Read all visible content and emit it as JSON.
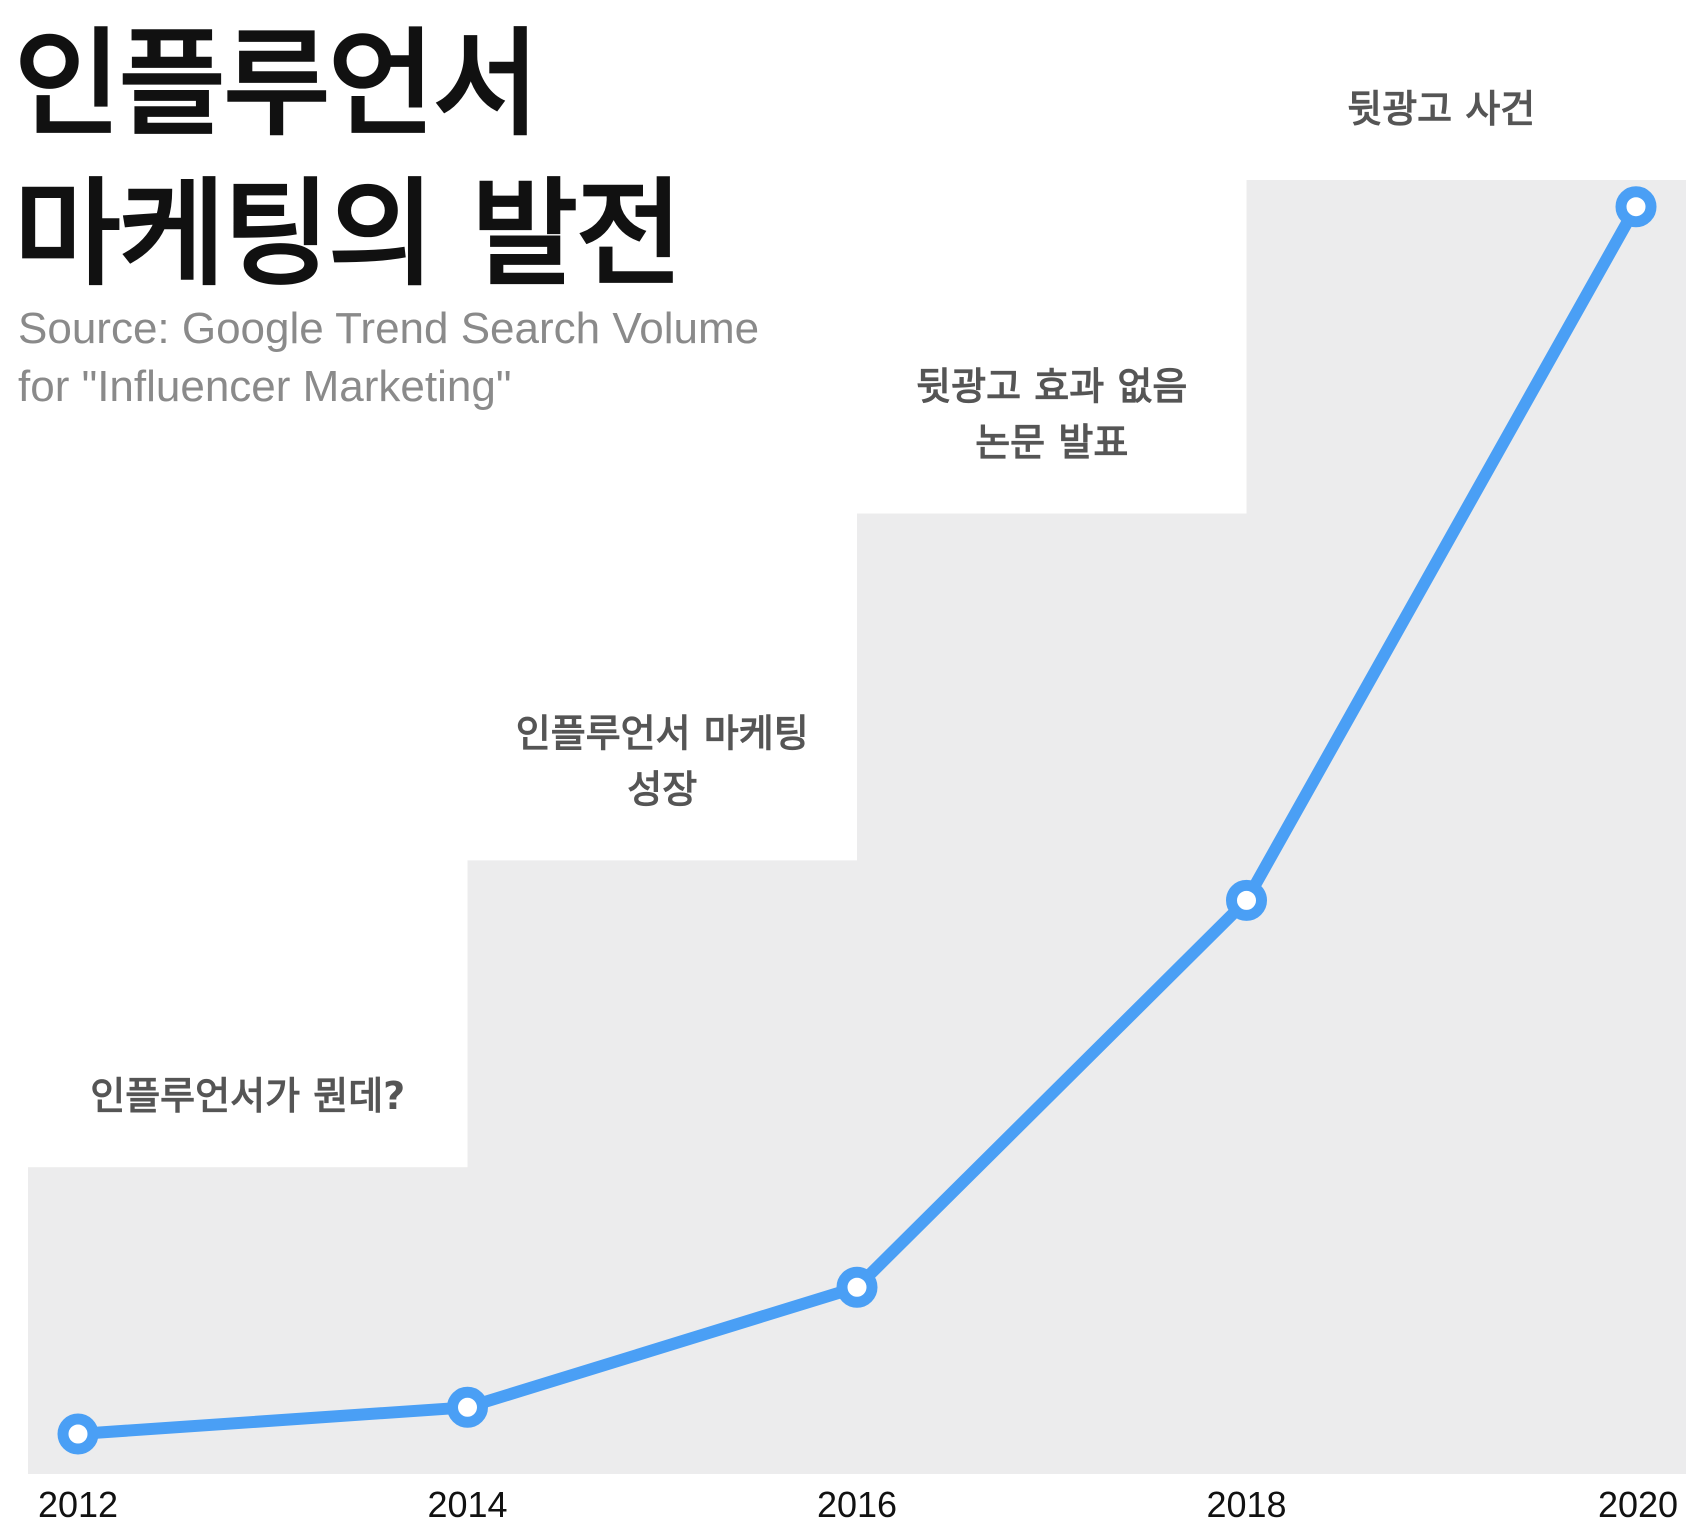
{
  "header": {
    "title_line1": "인플루언서",
    "title_line2": "마케팅의 발전",
    "source_line1": "Source: Google Trend Search Volume",
    "source_line2": "for \"Influencer Marketing\""
  },
  "colors": {
    "line": "#4A9FF5",
    "band": "#ECECED",
    "annotation": "#555555",
    "title": "#111111",
    "source": "#8A8A8A"
  },
  "chart_data": {
    "type": "line",
    "title": "인플루언서 마케팅의 발전",
    "subtitle": "Source: Google Trend Search Volume for \"Influencer Marketing\"",
    "xlabel": "",
    "ylabel": "",
    "x": [
      2012,
      2014,
      2016,
      2018,
      2020
    ],
    "series": [
      {
        "values": [
          3,
          5,
          14,
          43,
          95
        ]
      }
    ],
    "xlim": [
      2012,
      2020
    ],
    "ylim": [
      0,
      100
    ],
    "x_tick_labels": [
      "2012",
      "2014",
      "2016",
      "2018",
      "2020"
    ],
    "grid": false,
    "legend": "none",
    "stages": [
      {
        "x_start": 2012,
        "x_end": 2014,
        "level": 23,
        "label": [
          "인플루언서가 뭔데?"
        ]
      },
      {
        "x_start": 2014,
        "x_end": 2016,
        "level": 46,
        "label": [
          "인플루언서 마케팅",
          "성장"
        ]
      },
      {
        "x_start": 2016,
        "x_end": 2018,
        "level": 72,
        "label": [
          "뒷광고 효과 없음",
          "논문 발표"
        ]
      },
      {
        "x_start": 2018,
        "x_end": 2020,
        "level": 97,
        "label": [
          "뒷광고 사건"
        ]
      }
    ]
  }
}
